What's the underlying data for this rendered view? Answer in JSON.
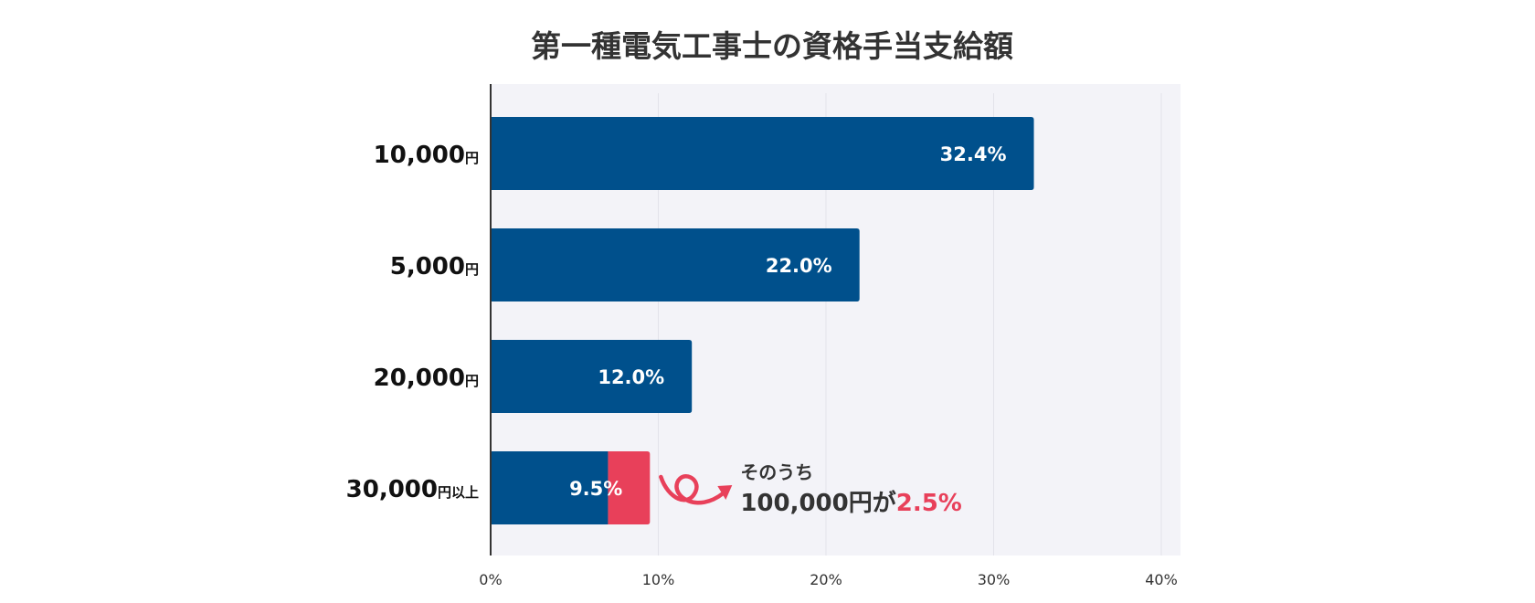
{
  "chart_data": {
    "type": "bar",
    "orientation": "horizontal",
    "title": "第一種電気工事士の資格手当支給額",
    "categories": [
      {
        "amount": "10,000",
        "unit": "円"
      },
      {
        "amount": "5,000",
        "unit": "円"
      },
      {
        "amount": "20,000",
        "unit": "円"
      },
      {
        "amount": "30,000",
        "unit": "円以上"
      }
    ],
    "values": [
      32.4,
      22.0,
      12.0,
      9.5
    ],
    "value_labels": [
      "32.4%",
      "22.0%",
      "12.0%",
      "9.5%"
    ],
    "highlight": {
      "category_index": 3,
      "value": 2.5,
      "line1": "そのうち",
      "line2_prefix": "100,000円が",
      "line2_value": "2.5%"
    },
    "x_ticks": [
      "0%",
      "10%",
      "20%",
      "30%",
      "40%"
    ],
    "xlim": [
      0,
      40
    ],
    "grid": true
  },
  "colors": {
    "bar": "#00508c",
    "highlight": "#e8405a",
    "plot_background": "#f3f3f8",
    "grid": "#e3e3ea",
    "axis": "#333333"
  }
}
